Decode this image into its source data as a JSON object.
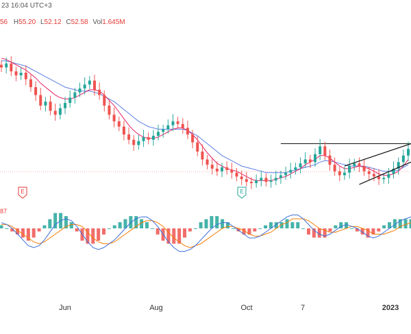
{
  "header": {
    "time_text": "23 16:04 UTC+3",
    "o_tail": "56",
    "h_label": "H",
    "h_value": "55.20",
    "l_label": "L",
    "l_value": "52.12",
    "c_label": "C",
    "c_value": "52.58",
    "vol_label": "Vol",
    "vol_value": "1.645M"
  },
  "colors": {
    "up": "#26a69a",
    "down": "#ef5350",
    "ma_blue": "#5b7ee5",
    "ma_red": "#e91e63",
    "macd_blue": "#3f6fd8",
    "macd_orange": "#f57c00",
    "hist_up": "#26a69a",
    "hist_down": "#ef5350"
  },
  "chart_data": [
    {
      "type": "candlestick",
      "x_labels": [
        "Jun",
        "Aug",
        "Oct",
        "7",
        "2023"
      ],
      "events": [
        {
          "label": "E",
          "color": "#e53935"
        },
        {
          "label": "E",
          "color": "#26a69a"
        }
      ],
      "closes": [
        60.5,
        60.8,
        60.2,
        59.9,
        60.1,
        59.6,
        59.0,
        58.4,
        57.6,
        57.9,
        57.2,
        56.9,
        57.4,
        57.8,
        58.2,
        58.6,
        58.9,
        59.2,
        59.5,
        58.8,
        58.4,
        57.6,
        56.9,
        56.4,
        56.0,
        55.4,
        55.0,
        54.6,
        54.9,
        55.2,
        55.0,
        55.3,
        55.6,
        55.8,
        56.1,
        56.4,
        56.2,
        55.9,
        55.4,
        54.8,
        54.1,
        53.5,
        53.1,
        52.8,
        52.6,
        52.9,
        52.7,
        52.5,
        52.2,
        52.0,
        51.8,
        51.7,
        51.9,
        52.1,
        51.8,
        51.9,
        52.1,
        52.3,
        52.5,
        52.7,
        52.9,
        53.2,
        53.5,
        53.3,
        53.9,
        54.5,
        53.8,
        53.1,
        52.6,
        52.3,
        52.5,
        53.0,
        53.2,
        53.0,
        52.6,
        52.4,
        52.2,
        52.0,
        52.1,
        52.4,
        52.8,
        53.3,
        53.8,
        54.3
      ],
      "ma_fast": [
        61.2,
        61.1,
        60.9,
        60.7,
        60.5,
        60.3,
        60.0,
        59.7,
        59.3,
        59.0,
        58.7,
        58.4,
        58.2,
        58.1,
        58.1,
        58.2,
        58.4,
        58.6,
        58.8,
        58.8,
        58.7,
        58.4,
        58.0,
        57.6,
        57.1,
        56.6,
        56.1,
        55.7,
        55.4,
        55.2,
        55.1,
        55.1,
        55.2,
        55.4,
        55.6,
        55.8,
        55.9,
        55.9,
        55.7,
        55.4,
        55.0,
        54.5,
        54.0,
        53.6,
        53.2,
        53.0,
        52.8,
        52.7,
        52.6,
        52.4,
        52.2,
        52.0,
        51.9,
        51.9,
        51.9,
        51.9,
        52.0,
        52.1,
        52.2,
        52.4,
        52.6,
        52.8,
        53.1,
        53.3,
        53.5,
        53.8,
        53.8,
        53.6,
        53.3,
        53.0,
        52.8,
        52.8,
        52.9,
        53.0,
        52.9,
        52.8,
        52.6,
        52.4,
        52.3,
        52.3,
        52.4,
        52.6,
        53.0,
        53.5
      ],
      "ma_slow": [
        61.0,
        61.0,
        60.9,
        60.8,
        60.7,
        60.6,
        60.4,
        60.2,
        60.0,
        59.8,
        59.6,
        59.4,
        59.2,
        59.0,
        58.9,
        58.8,
        58.7,
        58.7,
        58.7,
        58.6,
        58.5,
        58.3,
        58.1,
        57.9,
        57.6,
        57.3,
        57.0,
        56.7,
        56.4,
        56.2,
        56.0,
        55.9,
        55.8,
        55.8,
        55.8,
        55.8,
        55.8,
        55.8,
        55.7,
        55.5,
        55.3,
        55.0,
        54.7,
        54.4,
        54.1,
        53.8,
        53.6,
        53.4,
        53.2,
        53.0,
        52.9,
        52.8,
        52.7,
        52.6,
        52.5,
        52.5,
        52.5,
        52.5,
        52.5,
        52.6,
        52.7,
        52.8,
        52.9,
        53.0,
        53.1,
        53.3,
        53.4,
        53.4,
        53.3,
        53.2,
        53.1,
        53.0,
        53.0,
        53.0,
        53.0,
        52.9,
        52.8,
        52.7,
        52.6,
        52.6,
        52.6,
        52.7,
        52.9,
        53.1
      ],
      "level_line": 54.7,
      "channel_upper": [
        53.0,
        54.7
      ],
      "channel_lower": [
        51.6,
        53.3
      ],
      "channel_start_index": 70
    },
    {
      "type": "macd",
      "indicator_value": "87",
      "macd": [
        0.3,
        0.2,
        0.0,
        -0.3,
        -0.6,
        -0.9,
        -1.0,
        -0.9,
        -0.6,
        -0.2,
        0.2,
        0.4,
        0.5,
        0.4,
        0.1,
        -0.3,
        -0.7,
        -1.0,
        -1.1,
        -1.0,
        -0.8,
        -0.6,
        -0.3,
        0.0,
        0.3,
        0.5,
        0.6,
        0.6,
        0.4,
        0.1,
        -0.3,
        -0.7,
        -1.0,
        -1.2,
        -1.2,
        -1.1,
        -0.9,
        -0.6,
        -0.3,
        0.0,
        0.2,
        0.3,
        0.3,
        0.1,
        -0.1,
        -0.3,
        -0.5,
        -0.5,
        -0.4,
        -0.2,
        0.0,
        0.2,
        0.4,
        0.6,
        0.7,
        0.7,
        0.5,
        0.2,
        -0.1,
        -0.3,
        -0.4,
        -0.3,
        -0.1,
        0.1,
        0.2,
        0.1,
        0.0,
        -0.2,
        -0.4,
        -0.5,
        -0.4,
        -0.2,
        0.0,
        0.2,
        0.4,
        0.5,
        0.6
      ],
      "signal": [
        0.2,
        0.2,
        0.1,
        -0.1,
        -0.3,
        -0.5,
        -0.7,
        -0.8,
        -0.7,
        -0.5,
        -0.3,
        -0.1,
        0.1,
        0.2,
        0.2,
        0.1,
        -0.2,
        -0.5,
        -0.7,
        -0.8,
        -0.8,
        -0.7,
        -0.5,
        -0.3,
        -0.1,
        0.1,
        0.3,
        0.4,
        0.4,
        0.3,
        0.1,
        -0.2,
        -0.5,
        -0.7,
        -0.9,
        -1.0,
        -0.9,
        -0.8,
        -0.6,
        -0.4,
        -0.2,
        0.0,
        0.1,
        0.1,
        0.0,
        -0.1,
        -0.3,
        -0.4,
        -0.4,
        -0.3,
        -0.2,
        0.0,
        0.2,
        0.3,
        0.5,
        0.5,
        0.5,
        0.4,
        0.2,
        0.0,
        -0.1,
        -0.2,
        -0.2,
        -0.1,
        0.0,
        0.1,
        0.1,
        0.0,
        -0.1,
        -0.3,
        -0.3,
        -0.3,
        -0.2,
        -0.1,
        0.1,
        0.2,
        0.3
      ]
    }
  ]
}
